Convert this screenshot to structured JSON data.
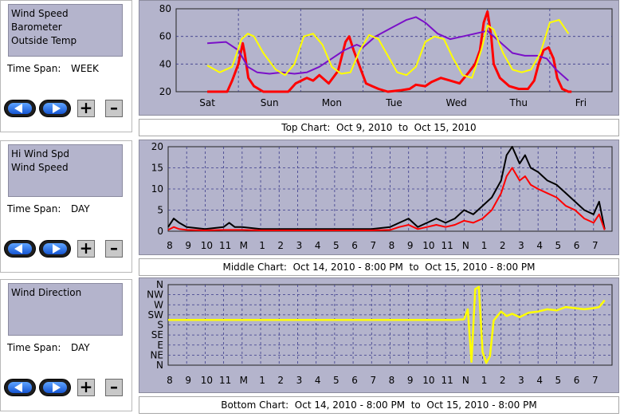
{
  "panels": [
    {
      "series_list": [
        "Wind Speed",
        "Barometer",
        "Outside Temp"
      ],
      "time_span_label": "Time Span:",
      "time_span_value": "WEEK",
      "plus_label": "+",
      "minus_label": "–",
      "caption": "Top Chart:  Oct 9, 2010  to  Oct 15, 2010"
    },
    {
      "series_list": [
        "Hi Wind Spd",
        "Wind Speed"
      ],
      "time_span_label": "Time Span:",
      "time_span_value": "DAY",
      "plus_label": "+",
      "minus_label": "–",
      "caption": "Middle Chart:  Oct 14, 2010 - 8:00 PM  to  Oct 15, 2010 - 8:00 PM"
    },
    {
      "series_list": [
        "Wind Direction"
      ],
      "time_span_label": "Time Span:",
      "time_span_value": "DAY",
      "plus_label": "+",
      "minus_label": "–",
      "caption": "Bottom Chart:  Oct 14, 2010 - 8:00 PM  to  Oct 15, 2010 - 8:00 PM"
    }
  ],
  "colors": {
    "plot_bg": "#b4b4cc",
    "grid": "#3a3a8a",
    "wind": "#ff0000",
    "hiwind": "#000000",
    "barometer": "#7a10c8",
    "temp": "#ffff00",
    "direction": "#ffff00"
  },
  "chart_data": [
    {
      "type": "line",
      "xlim": [
        0,
        7
      ],
      "ylim": [
        20,
        80
      ],
      "yticks": [
        20,
        40,
        60,
        80
      ],
      "xtick_labels": [
        "Sat",
        "Sun",
        "Mon",
        "Tue",
        "Wed",
        "Thu",
        "Fri"
      ],
      "grid": true,
      "series": [
        {
          "key": "wind",
          "x": [
            0.5,
            0.7,
            0.82,
            0.9,
            1.0,
            1.07,
            1.1,
            1.16,
            1.25,
            1.4,
            1.6,
            1.8,
            1.92,
            2.1,
            2.2,
            2.3,
            2.45,
            2.6,
            2.72,
            2.78,
            2.85,
            2.95,
            3.05,
            3.15,
            3.25,
            3.4,
            3.6,
            3.75,
            3.85,
            4.0,
            4.1,
            4.25,
            4.4,
            4.55,
            4.7,
            4.8,
            4.88,
            4.94,
            5.0,
            5.06,
            5.1,
            5.2,
            5.35,
            5.5,
            5.65,
            5.75,
            5.82,
            5.9,
            5.98,
            6.06,
            6.12,
            6.2,
            6.3,
            6.35
          ],
          "y": [
            20,
            20,
            20,
            28,
            40,
            55,
            48,
            30,
            24,
            20,
            20,
            20,
            26,
            30,
            28,
            32,
            26,
            35,
            56,
            60,
            50,
            38,
            26,
            24,
            22,
            20,
            21,
            22,
            25,
            24,
            27,
            30,
            28,
            26,
            34,
            40,
            50,
            70,
            78,
            60,
            40,
            30,
            24,
            22,
            22,
            28,
            40,
            50,
            52,
            44,
            30,
            22,
            20,
            20
          ]
        },
        {
          "key": "barometer",
          "x": [
            0.5,
            0.8,
            1.0,
            1.15,
            1.3,
            1.5,
            1.7,
            1.9,
            2.1,
            2.3,
            2.5,
            2.7,
            2.9,
            3.0,
            3.2,
            3.45,
            3.7,
            3.85,
            4.0,
            4.2,
            4.4,
            4.6,
            4.8,
            5.0,
            5.2,
            5.4,
            5.6,
            5.8,
            5.95,
            6.1,
            6.3
          ],
          "y": [
            55,
            56,
            50,
            38,
            34,
            33,
            34,
            33,
            34,
            38,
            44,
            50,
            54,
            52,
            60,
            66,
            72,
            74,
            70,
            62,
            58,
            60,
            62,
            64,
            56,
            48,
            46,
            46,
            44,
            36,
            28
          ]
        },
        {
          "key": "temp",
          "x": [
            0.5,
            0.7,
            0.9,
            1.05,
            1.15,
            1.25,
            1.4,
            1.6,
            1.75,
            1.9,
            2.05,
            2.2,
            2.35,
            2.5,
            2.65,
            2.8,
            2.95,
            3.1,
            3.25,
            3.4,
            3.55,
            3.7,
            3.85,
            4.0,
            4.15,
            4.3,
            4.45,
            4.6,
            4.75,
            4.9,
            5.0,
            5.1,
            5.25,
            5.4,
            5.55,
            5.7,
            5.85,
            6.0,
            6.15,
            6.3
          ],
          "y": [
            39,
            34,
            38,
            58,
            62,
            60,
            48,
            36,
            32,
            40,
            60,
            62,
            54,
            38,
            33,
            34,
            50,
            61,
            58,
            46,
            34,
            32,
            38,
            56,
            60,
            58,
            44,
            32,
            30,
            50,
            68,
            65,
            48,
            36,
            34,
            36,
            48,
            70,
            72,
            62
          ]
        }
      ]
    },
    {
      "type": "line",
      "xlim": [
        0,
        24
      ],
      "ylim": [
        0,
        20
      ],
      "yticks": [
        0,
        5,
        10,
        15,
        20
      ],
      "xtick_labels": [
        "8",
        "9",
        "10",
        "11",
        "M",
        "1",
        "2",
        "3",
        "4",
        "5",
        "6",
        "7",
        "8",
        "9",
        "10",
        "11",
        "N",
        "1",
        "2",
        "3",
        "4",
        "5",
        "6",
        "7"
      ],
      "grid": true,
      "series": [
        {
          "key": "hiwind",
          "x": [
            0,
            0.3,
            0.6,
            1.0,
            2.0,
            3.0,
            3.3,
            3.6,
            4.0,
            5.0,
            6.0,
            7.0,
            8.0,
            9.0,
            10.0,
            11.0,
            12.0,
            12.5,
            13.0,
            13.5,
            14.0,
            14.5,
            15.0,
            15.5,
            16.0,
            16.5,
            17.0,
            17.5,
            18.0,
            18.3,
            18.6,
            19.0,
            19.3,
            19.6,
            20.0,
            20.5,
            21.0,
            21.5,
            22.0,
            22.5,
            23.0,
            23.3,
            23.6
          ],
          "y": [
            1,
            3,
            2,
            1,
            0.5,
            1,
            2,
            1,
            1,
            0.5,
            0.5,
            0.5,
            0.5,
            0.5,
            0.5,
            0.5,
            1,
            2,
            3,
            1,
            2,
            3,
            2,
            3,
            5,
            4,
            6,
            8,
            12,
            18,
            20,
            16,
            18,
            15,
            14,
            12,
            11,
            9,
            7,
            5,
            4,
            7,
            0.5
          ]
        },
        {
          "key": "wind",
          "x": [
            0,
            0.3,
            0.6,
            1.0,
            2.0,
            3.0,
            4.0,
            5.0,
            6.0,
            7.0,
            8.0,
            9.0,
            10.0,
            11.0,
            12.0,
            12.5,
            13.0,
            13.5,
            14.0,
            14.5,
            15.0,
            15.5,
            16.0,
            16.5,
            17.0,
            17.5,
            18.0,
            18.3,
            18.6,
            19.0,
            19.3,
            19.6,
            20.0,
            20.5,
            21.0,
            21.5,
            22.0,
            22.5,
            23.0,
            23.3,
            23.6
          ],
          "y": [
            0.3,
            1,
            0.5,
            0.3,
            0.2,
            0.3,
            0.3,
            0.2,
            0.2,
            0.2,
            0.2,
            0.2,
            0.2,
            0.2,
            0.3,
            1,
            1.5,
            0.5,
            1,
            1.5,
            1,
            1.5,
            2.5,
            2,
            3,
            5,
            9,
            13,
            15,
            12,
            13,
            11,
            10,
            9,
            8,
            6,
            5,
            3,
            2,
            4,
            0.3
          ]
        }
      ]
    },
    {
      "type": "line",
      "xlim": [
        0,
        24
      ],
      "ylim": [
        0,
        360
      ],
      "ytick_values": [
        0,
        45,
        90,
        135,
        180,
        225,
        270,
        315,
        360
      ],
      "ytick_labels": [
        "N",
        "NE",
        "E",
        "SE",
        "S",
        "SW",
        "W",
        "NW",
        "N"
      ],
      "xtick_labels": [
        "8",
        "9",
        "10",
        "11",
        "M",
        "1",
        "2",
        "3",
        "4",
        "5",
        "6",
        "7",
        "8",
        "9",
        "10",
        "11",
        "N",
        "1",
        "2",
        "3",
        "4",
        "5",
        "6",
        "7"
      ],
      "grid": true,
      "series": [
        {
          "key": "direction",
          "x": [
            0,
            0.5,
            1.0,
            2.0,
            3.0,
            3.5,
            4.0,
            4.5,
            5.0,
            6.0,
            7.0,
            8.0,
            9.0,
            10.0,
            11.0,
            12.0,
            12.5,
            13.0,
            14.0,
            15.0,
            15.5,
            16.0,
            16.2,
            16.4,
            16.6,
            16.8,
            17.0,
            17.2,
            17.4,
            17.6,
            17.8,
            18.0,
            18.3,
            18.6,
            19.0,
            19.5,
            20.0,
            20.5,
            21.0,
            21.5,
            22.0,
            22.5,
            23.0,
            23.3,
            23.6
          ],
          "y": [
            202,
            202,
            202,
            202,
            202,
            202,
            202,
            202,
            202,
            202,
            202,
            202,
            202,
            202,
            202,
            202,
            202,
            202,
            202,
            202,
            202,
            205,
            250,
            15,
            340,
            350,
            60,
            10,
            40,
            200,
            220,
            240,
            220,
            230,
            215,
            235,
            240,
            250,
            245,
            260,
            255,
            250,
            255,
            260,
            290
          ]
        }
      ]
    }
  ]
}
